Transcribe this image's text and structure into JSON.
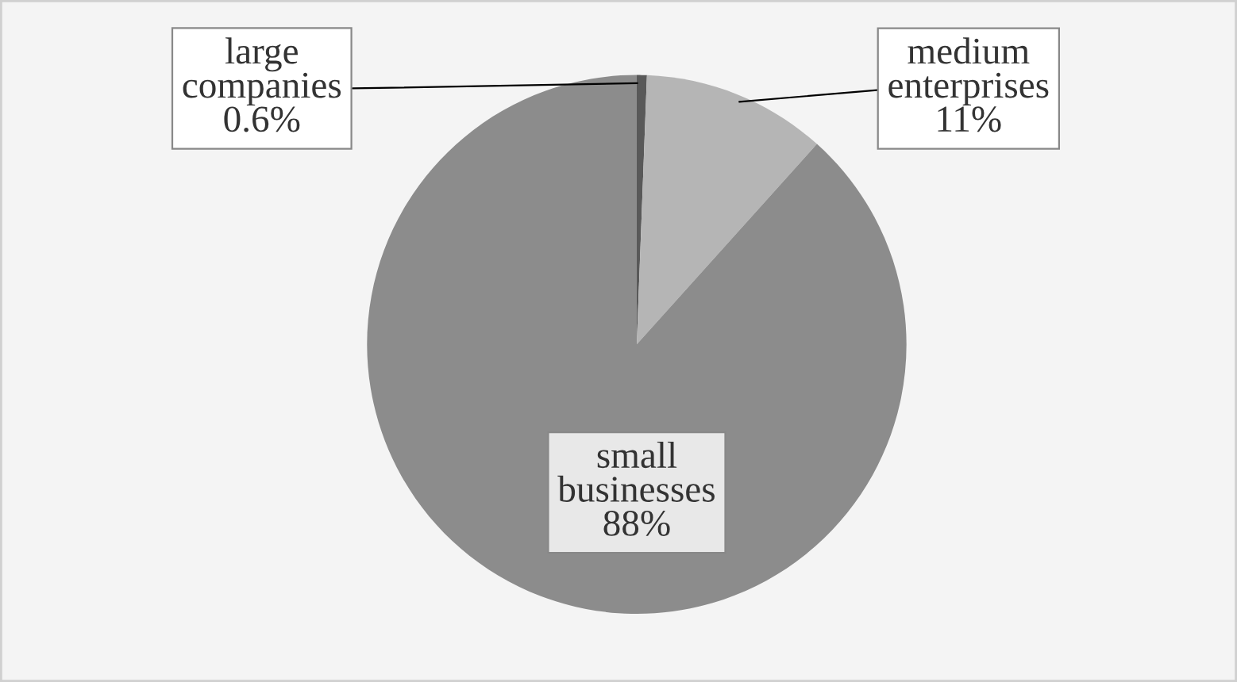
{
  "chart_data": {
    "type": "pie",
    "categories": [
      "large companies",
      "medium enterprises",
      "small businesses"
    ],
    "values": [
      0.6,
      11,
      88
    ],
    "colors": [
      "#595959",
      "#b5b5b5",
      "#8c8c8c"
    ],
    "value_labels": [
      "0.6%",
      "11%",
      "88%"
    ]
  }
}
